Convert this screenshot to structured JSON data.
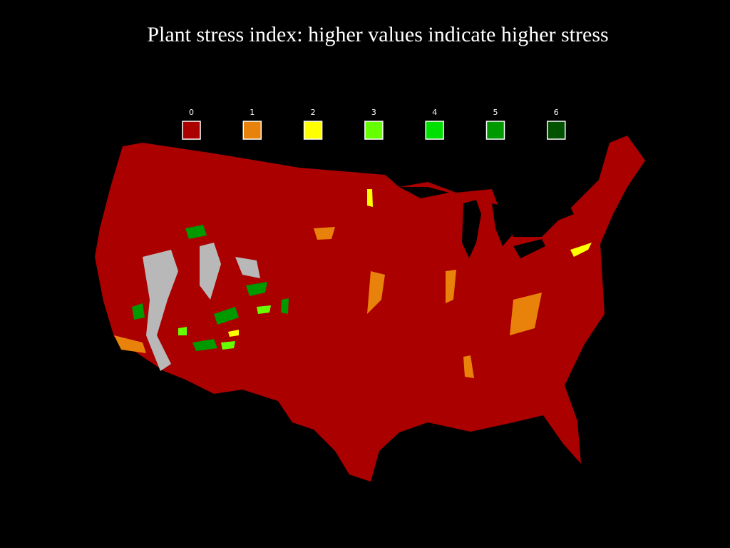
{
  "title": "Plant stress index: higher values indicate higher stress",
  "legend": {
    "items": [
      {
        "label": "0",
        "color": "#aa0000"
      },
      {
        "label": "1",
        "color": "#e8820a"
      },
      {
        "label": "2",
        "color": "#ffff00"
      },
      {
        "label": "3",
        "color": "#66ff00"
      },
      {
        "label": "4",
        "color": "#00e000"
      },
      {
        "label": "5",
        "color": "#009900"
      },
      {
        "label": "6",
        "color": "#005200"
      }
    ]
  }
}
